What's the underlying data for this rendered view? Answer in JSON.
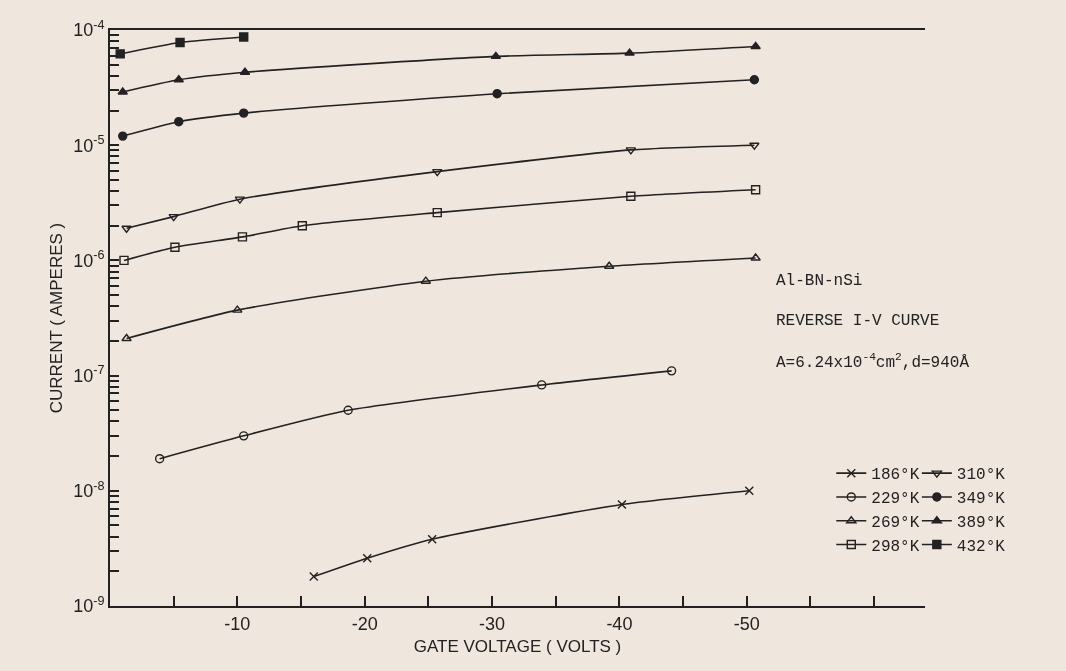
{
  "chart_data": {
    "type": "line",
    "xlabel": "GATE VOLTAGE ( VOLTS )",
    "ylabel": "CURRENT ( AMPERES )",
    "annotations": [
      "Al-BN-nSi",
      "REVERSE I-V CURVE",
      "A=6.24x10$^{-4}$cm$^{2}$,d=940Å"
    ],
    "log": "y",
    "grid": false,
    "legend": "right",
    "line_style": "solid",
    "xlim": [
      0,
      -64
    ],
    "xticks": [
      {
        "value": -5,
        "label": null
      },
      -10,
      {
        "value": -15,
        "label": null
      },
      -20,
      {
        "value": -25,
        "label": null
      },
      -30,
      {
        "value": -35,
        "label": null
      },
      -40,
      {
        "value": -45,
        "label": null
      },
      -50,
      {
        "value": -55,
        "label": null
      },
      {
        "value": -60,
        "label": null
      }
    ],
    "ylim": [
      1e-09,
      0.0001
    ],
    "yticks": [
      {
        "value": 1e-09,
        "label": "10$^{-9}$"
      },
      {
        "value": 2e-09,
        "label": null
      },
      {
        "value": 3e-09,
        "label": null
      },
      {
        "value": 4e-09,
        "label": null
      },
      {
        "value": 5e-09,
        "label": null
      },
      {
        "value": 6e-09,
        "label": null
      },
      {
        "value": 7e-09,
        "label": null
      },
      {
        "value": 8e-09,
        "label": null
      },
      {
        "value": 9e-09,
        "label": null
      },
      {
        "value": 1e-08,
        "label": "10$^{-8}$"
      },
      {
        "value": 2e-08,
        "label": null
      },
      {
        "value": 3e-08,
        "label": null
      },
      {
        "value": 4e-08,
        "label": null
      },
      {
        "value": 5e-08,
        "label": null
      },
      {
        "value": 6e-08,
        "label": null
      },
      {
        "value": 7e-08,
        "label": null
      },
      {
        "value": 8e-08,
        "label": null
      },
      {
        "value": 9e-08,
        "label": null
      },
      {
        "value": 1e-07,
        "label": "10$^{-7}$"
      },
      {
        "value": 2e-07,
        "label": null
      },
      {
        "value": 3e-07,
        "label": null
      },
      {
        "value": 4e-07,
        "label": null
      },
      {
        "value": 5e-07,
        "label": null
      },
      {
        "value": 6e-07,
        "label": null
      },
      {
        "value": 7e-07,
        "label": null
      },
      {
        "value": 8e-07,
        "label": null
      },
      {
        "value": 9e-07,
        "label": null
      },
      {
        "value": 1e-06,
        "label": "10$^{-6}$"
      },
      {
        "value": 2e-06,
        "label": null
      },
      {
        "value": 3e-06,
        "label": null
      },
      {
        "value": 4e-06,
        "label": null
      },
      {
        "value": 5e-06,
        "label": null
      },
      {
        "value": 6e-06,
        "label": null
      },
      {
        "value": 7e-06,
        "label": null
      },
      {
        "value": 8e-06,
        "label": null
      },
      {
        "value": 9e-06,
        "label": null
      },
      {
        "value": 1e-05,
        "label": "10$^{-5}$"
      },
      {
        "value": 2e-05,
        "label": null
      },
      {
        "value": 3e-05,
        "label": null
      },
      {
        "value": 4e-05,
        "label": null
      },
      {
        "value": 5e-05,
        "label": null
      },
      {
        "value": 6e-05,
        "label": null
      },
      {
        "value": 7e-05,
        "label": null
      },
      {
        "value": 8e-05,
        "label": null
      },
      {
        "value": 9e-05,
        "label": null
      },
      {
        "value": 0.0001,
        "label": "10$^{-4}$"
      }
    ],
    "series": [
      {
        "name": "186°K",
        "color": "#222222",
        "marker": "cross",
        "x": [
          -16.0,
          -20.2,
          -25.3,
          -40.2,
          -50.2
        ],
        "values": [
          1.8e-09,
          2.6e-09,
          3.8e-09,
          7.6e-09,
          1e-08
        ]
      },
      {
        "name": "229°K",
        "color": "#222222",
        "marker": "circle-open",
        "x": [
          -3.9,
          -10.5,
          -18.7,
          -33.9,
          -44.1
        ],
        "values": [
          1.9e-08,
          3e-08,
          5e-08,
          8.3e-08,
          1.1e-07
        ]
      },
      {
        "name": "269°K",
        "color": "#222222",
        "marker": "triangle-open",
        "x": [
          -1.3,
          -10.0,
          -24.8,
          -39.2,
          -50.7
        ],
        "values": [
          2.1e-07,
          3.7e-07,
          6.6e-07,
          8.9e-07,
          1.05e-06
        ]
      },
      {
        "name": "298°K",
        "color": "#222222",
        "marker": "square-open",
        "x": [
          -1.1,
          -5.1,
          -10.4,
          -15.1,
          -25.7,
          -40.9,
          -50.7
        ],
        "values": [
          1e-06,
          1.3e-06,
          1.6e-06,
          2e-06,
          2.6e-06,
          3.6e-06,
          4.1e-06
        ]
      },
      {
        "name": "310°K",
        "color": "#222222",
        "marker": "triangle-down-open",
        "x": [
          -1.3,
          -5.0,
          -10.2,
          -25.7,
          -40.9,
          -50.6
        ],
        "values": [
          1.9e-06,
          2.4e-06,
          3.4e-06,
          5.9e-06,
          9.1e-06,
          1e-05
        ]
      },
      {
        "name": "349°K",
        "color": "#222222",
        "marker": "circle",
        "x": [
          -1.0,
          -5.4,
          -10.5,
          -30.4,
          -50.6
        ],
        "values": [
          1.2e-05,
          1.6e-05,
          1.9e-05,
          2.8e-05,
          3.7e-05
        ]
      },
      {
        "name": "389°K",
        "color": "#222222",
        "marker": "triangle",
        "x": [
          -1.0,
          -5.4,
          -10.6,
          -30.3,
          -40.8,
          -50.7
        ],
        "values": [
          2.9e-05,
          3.7e-05,
          4.3e-05,
          5.9e-05,
          6.3e-05,
          7.2e-05
        ]
      },
      {
        "name": "432°K",
        "color": "#222222",
        "marker": "square",
        "x": [
          -0.8,
          -5.5,
          -10.5
        ],
        "values": [
          6.2e-05,
          7.8e-05,
          8.7e-05
        ]
      }
    ]
  }
}
